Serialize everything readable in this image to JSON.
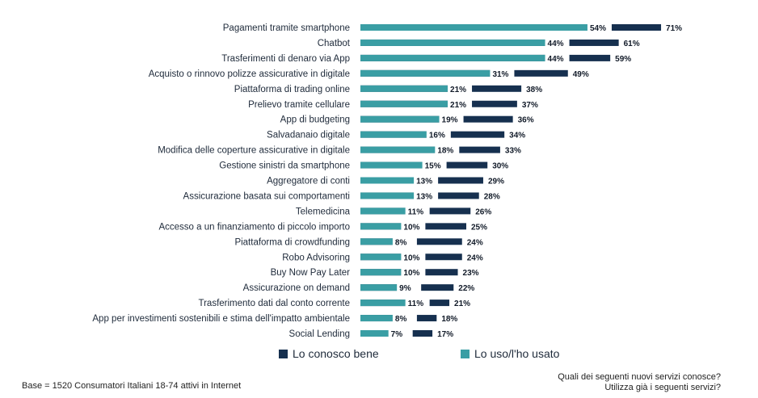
{
  "chart_data": {
    "type": "bar",
    "orientation": "horizontal",
    "stacked_overlay": true,
    "categories": [
      "Pagamenti tramite smartphone",
      "Chatbot",
      "Trasferimenti di denaro via App",
      "Acquisto o rinnovo polizze assicurative in digitale",
      "Piattaforma di trading online",
      "Prelievo tramite cellulare",
      "App di budgeting",
      "Salvadanaio digitale",
      "Modifica delle coperture assicurative in digitale",
      "Gestione sinistri da smartphone",
      "Aggregatore di conti",
      "Assicurazione basata sui comportamenti",
      "Telemedicina",
      "Accesso a un finanziamento di piccolo importo",
      "Piattaforma di crowdfunding",
      "Robo Advisoring",
      "Buy Now Pay Later",
      "Assicurazione on demand",
      "Trasferimento dati dal conto corrente",
      "App per investimenti sostenibili e stima dell'impatto ambientale",
      "Social Lending"
    ],
    "series": [
      {
        "name": "Lo conosco bene",
        "color": "#16304f",
        "values": [
          71,
          61,
          59,
          49,
          38,
          37,
          36,
          34,
          33,
          30,
          29,
          28,
          26,
          25,
          24,
          24,
          23,
          22,
          21,
          18,
          17
        ],
        "labels": [
          "71%",
          "61%",
          "59%",
          "49%",
          "38%",
          "37%",
          "36%",
          "34%",
          "33%",
          "30%",
          "29%",
          "28%",
          "26%",
          "25%",
          "24%",
          "24%",
          "23%",
          "22%",
          "21%",
          "18%",
          "17%"
        ]
      },
      {
        "name": "Lo uso/l'ho usato",
        "color": "#3a9ea4",
        "values": [
          54,
          44,
          44,
          31,
          21,
          21,
          19,
          16,
          18,
          15,
          13,
          13,
          11,
          10,
          8,
          10,
          10,
          9,
          11,
          8,
          7
        ],
        "labels": [
          "54%",
          "44%",
          "44%",
          "31%",
          "21%",
          "21%",
          "19%",
          "16%",
          "18%",
          "15%",
          "13%",
          "13%",
          "11%",
          "10%",
          "8%",
          "10%",
          "10%",
          "9%",
          "11%",
          "8%",
          "7%"
        ]
      }
    ],
    "xlim": [
      0,
      71
    ],
    "grid": false,
    "legend_position": "bottom"
  },
  "legend": {
    "item1": "Lo conosco bene",
    "item2": "Lo uso/l'ho usato"
  },
  "footer": {
    "base": "Base = 1520 Consumatori Italiani 18-74 attivi in Internet",
    "question_line1": "Quali dei seguenti nuovi servizi conosce?",
    "question_line2": "Utilizza già i seguenti servizi?"
  }
}
